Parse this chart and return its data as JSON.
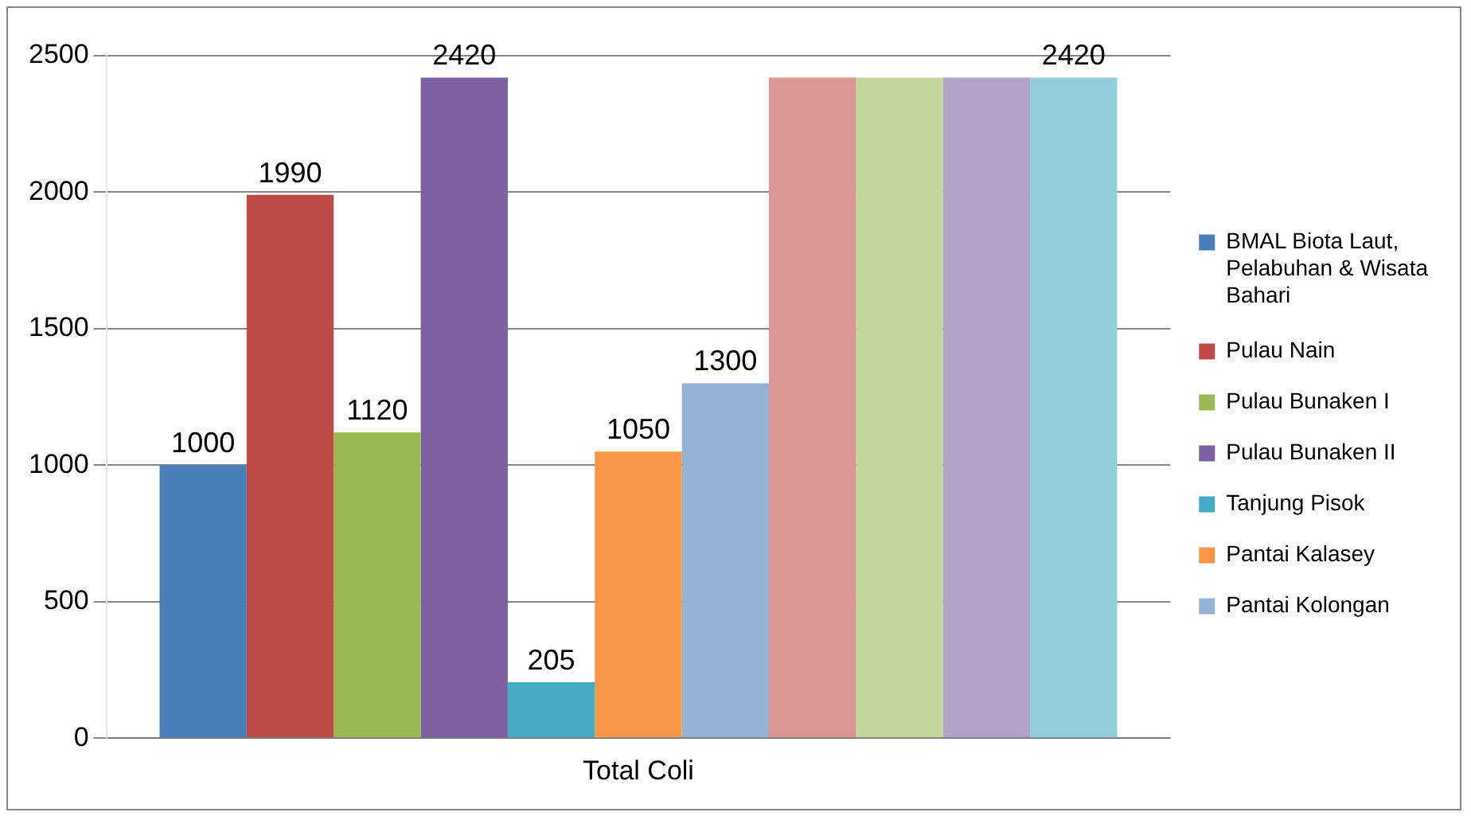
{
  "chart_data": {
    "type": "bar",
    "categories": [
      "Total Coli"
    ],
    "ylim": [
      0,
      2500
    ],
    "yticks": [
      0,
      500,
      1000,
      1500,
      2000,
      2500
    ],
    "grid": "y",
    "legend": "right",
    "series": [
      {
        "name": "BMAL Biota Laut, Pelabuhan & Wisata Bahari",
        "color": "#4a7ebb",
        "values": [
          1000
        ],
        "value_labels": [
          "1000"
        ]
      },
      {
        "name": "Pulau Nain",
        "color": "#be4b48",
        "values": [
          1990
        ],
        "value_labels": [
          "1990"
        ]
      },
      {
        "name": "Pulau Bunaken I",
        "color": "#98b954",
        "values": [
          1120
        ],
        "value_labels": [
          "1120"
        ]
      },
      {
        "name": "Pulau Bunaken II",
        "color": "#7d60a0",
        "values": [
          2420
        ],
        "value_labels": [
          "2420"
        ]
      },
      {
        "name": "Tanjung Pisok",
        "color": "#46aac5",
        "values": [
          205
        ],
        "value_labels": [
          "205"
        ]
      },
      {
        "name": "Pantai Kalasey",
        "color": "#f79646",
        "values": [
          1050
        ],
        "value_labels": [
          "1050"
        ]
      },
      {
        "name": "Pantai Kolongan",
        "color": "#95b3d7",
        "values": [
          1300
        ],
        "value_labels": [
          "1300"
        ]
      },
      {
        "color": "#d99694",
        "values": [
          2420
        ],
        "value_labels": [
          null
        ]
      },
      {
        "color": "#c3d69b",
        "values": [
          2420
        ],
        "value_labels": [
          null
        ]
      },
      {
        "color": "#b3a2c7",
        "values": [
          2420
        ],
        "value_labels": [
          null
        ]
      },
      {
        "color": "#93cddd",
        "values": [
          2420
        ],
        "value_labels": [
          "2420"
        ]
      }
    ]
  }
}
